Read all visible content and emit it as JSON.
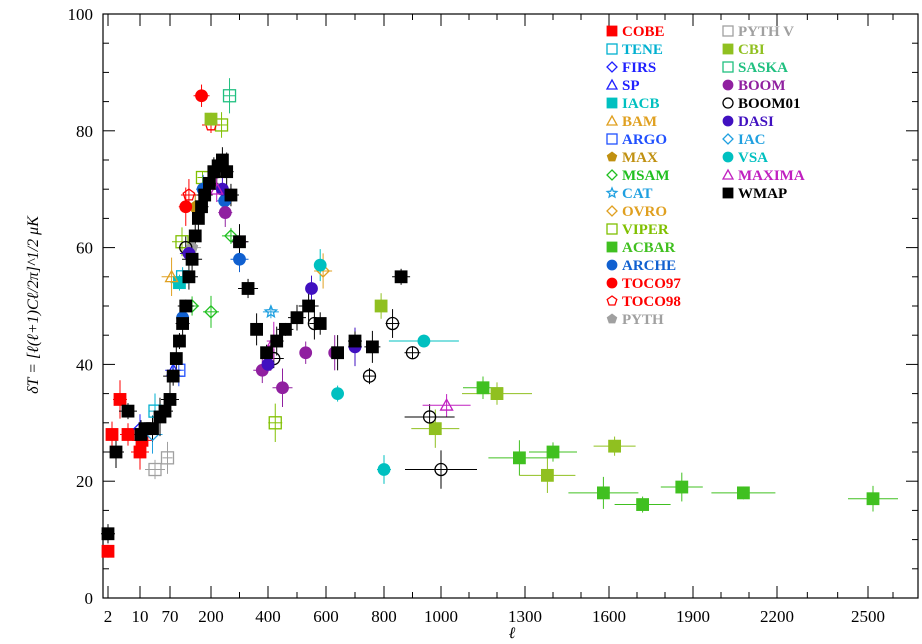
{
  "chart_data": {
    "type": "scatter",
    "title": "",
    "xlabel": "ℓ",
    "ylabel": "δT = [ℓ(ℓ+1)Cℓ/2π]^1/2 μK",
    "ylim": [
      0,
      100
    ],
    "x_scale": "piecewise",
    "x_ticks": [
      {
        "value": 2,
        "label": "2"
      },
      {
        "value": 10,
        "label": "10"
      },
      {
        "value": 70,
        "label": "70"
      },
      {
        "value": 200,
        "label": "200"
      },
      {
        "value": 400,
        "label": "400"
      },
      {
        "value": 600,
        "label": "600"
      },
      {
        "value": 800,
        "label": "800"
      },
      {
        "value": 1000,
        "label": "1000"
      },
      {
        "value": 1300,
        "label": "1300"
      },
      {
        "value": 1600,
        "label": "1600"
      },
      {
        "value": 1900,
        "label": "1900"
      },
      {
        "value": 2200,
        "label": "2200"
      },
      {
        "value": 2500,
        "label": "2500"
      }
    ],
    "y_ticks": [
      0,
      20,
      40,
      60,
      80,
      100
    ],
    "grid": false,
    "legend_position": "top-right",
    "series": [
      {
        "name": "COBE",
        "color": "#ff0000",
        "marker": "square-filled",
        "points": [
          {
            "x": 2,
            "y": 8
          },
          {
            "x": 3,
            "y": 28
          },
          {
            "x": 5,
            "y": 34
          },
          {
            "x": 7,
            "y": 28
          },
          {
            "x": 10,
            "y": 25
          },
          {
            "x": 14,
            "y": 27
          }
        ]
      },
      {
        "name": "TENE",
        "color": "#00b0d0",
        "marker": "square-open",
        "points": [
          {
            "x": 40,
            "y": 32
          },
          {
            "x": 110,
            "y": 55
          }
        ]
      },
      {
        "name": "FIRS",
        "color": "#2020ff",
        "marker": "diamond-open",
        "points": [
          {
            "x": 10,
            "y": 29
          }
        ]
      },
      {
        "name": "SP",
        "color": "#2020ff",
        "marker": "triangle-open",
        "points": [
          {
            "x": 80,
            "y": 39
          }
        ]
      },
      {
        "name": "IACB",
        "color": "#00c0c0",
        "marker": "square-filled",
        "points": [
          {
            "x": 100,
            "y": 54
          }
        ]
      },
      {
        "name": "BAM",
        "color": "#e0a020",
        "marker": "triangle-open",
        "points": [
          {
            "x": 75,
            "y": 55
          }
        ]
      },
      {
        "name": "ARGO",
        "color": "#2050ff",
        "marker": "square-open",
        "points": [
          {
            "x": 98,
            "y": 39
          }
        ]
      },
      {
        "name": "MAX",
        "color": "#c09010",
        "marker": "pentagon-filled",
        "points": [
          {
            "x": 150,
            "y": 67
          }
        ]
      },
      {
        "name": "MSAM",
        "color": "#20c020",
        "marker": "diamond-open",
        "points": [
          {
            "x": 140,
            "y": 50
          },
          {
            "x": 200,
            "y": 49
          },
          {
            "x": 270,
            "y": 62
          }
        ]
      },
      {
        "name": "CAT",
        "color": "#20a0e0",
        "marker": "star-open",
        "points": [
          {
            "x": 410,
            "y": 49
          }
        ]
      },
      {
        "name": "OVRO",
        "color": "#e0a020",
        "marker": "diamond-open",
        "points": [
          {
            "x": 590,
            "y": 56
          }
        ]
      },
      {
        "name": "VIPER",
        "color": "#80c000",
        "marker": "square-open",
        "points": [
          {
            "x": 108,
            "y": 61
          },
          {
            "x": 173,
            "y": 72
          },
          {
            "x": 237,
            "y": 81
          },
          {
            "x": 425,
            "y": 30
          }
        ]
      },
      {
        "name": "ACBAR",
        "color": "#40c020",
        "marker": "square-filled",
        "points": [
          {
            "x": 1150,
            "y": 36
          },
          {
            "x": 1280,
            "y": 24
          },
          {
            "x": 1400,
            "y": 25
          },
          {
            "x": 1580,
            "y": 18
          },
          {
            "x": 1720,
            "y": 16
          },
          {
            "x": 1860,
            "y": 19
          },
          {
            "x": 2080,
            "y": 18
          },
          {
            "x": 2520,
            "y": 17
          }
        ]
      },
      {
        "name": "ARCHE",
        "color": "#1060d0",
        "marker": "circle-filled",
        "points": [
          {
            "x": 110,
            "y": 48
          },
          {
            "x": 175,
            "y": 70
          },
          {
            "x": 248,
            "y": 68
          },
          {
            "x": 300,
            "y": 58
          }
        ]
      },
      {
        "name": "TOCO97",
        "color": "#ff0000",
        "marker": "circle-filled",
        "points": [
          {
            "x": 120,
            "y": 67
          },
          {
            "x": 170,
            "y": 86
          }
        ]
      },
      {
        "name": "TOCO98",
        "color": "#ff0000",
        "marker": "pentagon-open",
        "points": [
          {
            "x": 130,
            "y": 69
          },
          {
            "x": 200,
            "y": 81
          }
        ]
      },
      {
        "name": "PYTH",
        "color": "#a0a0a0",
        "marker": "pentagon-filled",
        "points": [
          {
            "x": 140,
            "y": 60
          }
        ]
      },
      {
        "name": "PYTH V",
        "color": "#a0a0a0",
        "marker": "square-open",
        "points": [
          {
            "x": 40,
            "y": 22
          },
          {
            "x": 65,
            "y": 24
          }
        ]
      },
      {
        "name": "CBI",
        "color": "#90c020",
        "marker": "square-filled",
        "points": [
          {
            "x": 200,
            "y": 82
          },
          {
            "x": 790,
            "y": 50
          },
          {
            "x": 980,
            "y": 29
          },
          {
            "x": 1200,
            "y": 35
          },
          {
            "x": 1380,
            "y": 21
          },
          {
            "x": 1620,
            "y": 26
          }
        ]
      },
      {
        "name": "SASKA",
        "color": "#20c080",
        "marker": "square-open",
        "points": [
          {
            "x": 265,
            "y": 86
          }
        ]
      },
      {
        "name": "BOOM",
        "color": "#9020a0",
        "marker": "circle-filled",
        "points": [
          {
            "x": 250,
            "y": 66
          },
          {
            "x": 300,
            "y": 61
          },
          {
            "x": 380,
            "y": 39
          },
          {
            "x": 450,
            "y": 36
          },
          {
            "x": 530,
            "y": 42
          },
          {
            "x": 630,
            "y": 42
          }
        ]
      },
      {
        "name": "BOOM01",
        "color": "#000000",
        "marker": "circle-open",
        "points": [
          {
            "x": 120,
            "y": 60
          },
          {
            "x": 220,
            "y": 73
          },
          {
            "x": 420,
            "y": 41
          },
          {
            "x": 560,
            "y": 47
          },
          {
            "x": 750,
            "y": 38
          },
          {
            "x": 830,
            "y": 47
          },
          {
            "x": 900,
            "y": 42
          },
          {
            "x": 960,
            "y": 31
          },
          {
            "x": 1000,
            "y": 22
          }
        ]
      },
      {
        "name": "DASI",
        "color": "#4010c0",
        "marker": "circle-filled",
        "points": [
          {
            "x": 130,
            "y": 59
          },
          {
            "x": 240,
            "y": 70
          },
          {
            "x": 400,
            "y": 40
          },
          {
            "x": 550,
            "y": 53
          },
          {
            "x": 700,
            "y": 43
          }
        ]
      },
      {
        "name": "IAC",
        "color": "#20a0e0",
        "marker": "diamond-open",
        "points": [
          {
            "x": 35,
            "y": 28
          }
        ]
      },
      {
        "name": "VSA",
        "color": "#00c0c0",
        "marker": "circle-filled",
        "points": [
          {
            "x": 580,
            "y": 57
          },
          {
            "x": 640,
            "y": 35
          },
          {
            "x": 800,
            "y": 22
          },
          {
            "x": 940,
            "y": 44
          }
        ]
      },
      {
        "name": "MAXIMA",
        "color": "#c020c0",
        "marker": "triangle-open",
        "points": [
          {
            "x": 220,
            "y": 70
          },
          {
            "x": 420,
            "y": 44
          },
          {
            "x": 1020,
            "y": 33
          }
        ]
      },
      {
        "name": "WMAP",
        "color": "#000000",
        "marker": "square-filled",
        "points": [
          {
            "x": 2,
            "y": 11
          },
          {
            "x": 4,
            "y": 25
          },
          {
            "x": 7,
            "y": 32
          },
          {
            "x": 12,
            "y": 28
          },
          {
            "x": 20,
            "y": 29
          },
          {
            "x": 35,
            "y": 29
          },
          {
            "x": 50,
            "y": 31
          },
          {
            "x": 60,
            "y": 32
          },
          {
            "x": 70,
            "y": 34
          },
          {
            "x": 80,
            "y": 38
          },
          {
            "x": 90,
            "y": 41
          },
          {
            "x": 100,
            "y": 44
          },
          {
            "x": 110,
            "y": 47
          },
          {
            "x": 120,
            "y": 50
          },
          {
            "x": 130,
            "y": 55
          },
          {
            "x": 140,
            "y": 58
          },
          {
            "x": 150,
            "y": 62
          },
          {
            "x": 160,
            "y": 65
          },
          {
            "x": 170,
            "y": 67
          },
          {
            "x": 180,
            "y": 69
          },
          {
            "x": 195,
            "y": 71
          },
          {
            "x": 210,
            "y": 73
          },
          {
            "x": 225,
            "y": 74
          },
          {
            "x": 240,
            "y": 75
          },
          {
            "x": 255,
            "y": 73
          },
          {
            "x": 270,
            "y": 69
          },
          {
            "x": 300,
            "y": 61
          },
          {
            "x": 330,
            "y": 53
          },
          {
            "x": 360,
            "y": 46
          },
          {
            "x": 395,
            "y": 42
          },
          {
            "x": 430,
            "y": 44
          },
          {
            "x": 460,
            "y": 46
          },
          {
            "x": 500,
            "y": 48
          },
          {
            "x": 540,
            "y": 50
          },
          {
            "x": 580,
            "y": 47
          },
          {
            "x": 640,
            "y": 42
          },
          {
            "x": 700,
            "y": 44
          },
          {
            "x": 760,
            "y": 43
          },
          {
            "x": 860,
            "y": 55
          }
        ]
      }
    ]
  }
}
